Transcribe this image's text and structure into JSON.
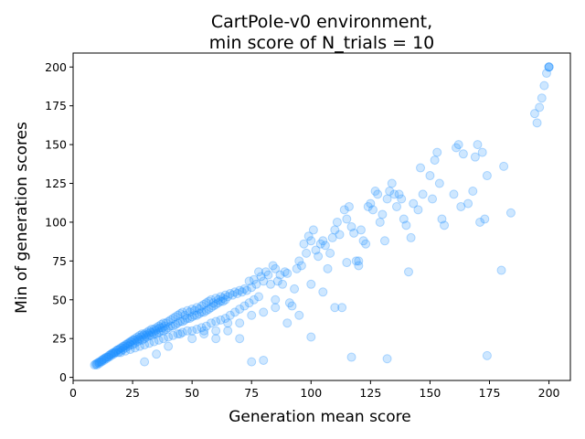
{
  "chart_data": {
    "type": "scatter",
    "title_lines": [
      "CartPole-v0 environment,",
      "min score of N_trials = 10"
    ],
    "xlabel": "Generation mean score",
    "ylabel": "Min of generation scores",
    "xlim": [
      0,
      209
    ],
    "ylim": [
      -2,
      209
    ],
    "xticks": [
      0,
      25,
      50,
      75,
      100,
      125,
      150,
      175,
      200
    ],
    "yticks": [
      0,
      25,
      50,
      75,
      100,
      125,
      150,
      175,
      200
    ],
    "grid": false,
    "legend": "none",
    "marker_color": "#1E90FF",
    "marker_alpha": 0.22,
    "series": [
      {
        "points": [
          [
            9,
            8
          ],
          [
            9.5,
            8.5
          ],
          [
            10,
            9
          ],
          [
            10,
            8
          ],
          [
            10.5,
            9.5
          ],
          [
            11,
            10
          ],
          [
            11,
            9
          ],
          [
            11.5,
            10
          ],
          [
            12,
            11
          ],
          [
            12,
            10
          ],
          [
            12.5,
            11.5
          ],
          [
            13,
            12
          ],
          [
            13,
            11
          ],
          [
            13.5,
            12.5
          ],
          [
            14,
            13
          ],
          [
            14,
            12
          ],
          [
            14.5,
            13
          ],
          [
            15,
            14
          ],
          [
            15,
            13
          ],
          [
            15.5,
            14.5
          ],
          [
            16,
            15
          ],
          [
            16,
            14
          ],
          [
            16.5,
            15.5
          ],
          [
            17,
            16
          ],
          [
            17,
            15
          ],
          [
            17.5,
            16
          ],
          [
            18,
            17
          ],
          [
            18,
            16
          ],
          [
            18.5,
            17.5
          ],
          [
            19,
            18
          ],
          [
            19,
            16
          ],
          [
            19.5,
            18
          ],
          [
            20,
            19
          ],
          [
            20,
            17
          ],
          [
            20.5,
            19
          ],
          [
            21,
            20
          ],
          [
            21,
            18
          ],
          [
            21.5,
            20
          ],
          [
            22,
            21
          ],
          [
            22,
            19
          ],
          [
            22.5,
            21
          ],
          [
            23,
            22
          ],
          [
            23,
            20
          ],
          [
            23.5,
            22
          ],
          [
            24,
            23
          ],
          [
            24,
            21
          ],
          [
            24.5,
            23
          ],
          [
            25,
            24
          ],
          [
            25,
            21
          ],
          [
            25.5,
            24
          ],
          [
            26,
            25
          ],
          [
            26,
            22
          ],
          [
            26.5,
            24
          ],
          [
            27,
            26
          ],
          [
            27,
            23
          ],
          [
            27.5,
            25
          ],
          [
            28,
            27
          ],
          [
            28,
            24
          ],
          [
            28.5,
            26
          ],
          [
            29,
            28
          ],
          [
            29,
            24
          ],
          [
            29.5,
            27
          ],
          [
            30,
            28
          ],
          [
            30,
            25
          ],
          [
            30.5,
            27
          ],
          [
            31,
            29
          ],
          [
            31,
            26
          ],
          [
            31.5,
            28
          ],
          [
            32,
            30
          ],
          [
            32,
            27
          ],
          [
            32.5,
            29
          ],
          [
            33,
            31
          ],
          [
            33,
            27
          ],
          [
            33.5,
            29
          ],
          [
            34,
            31
          ],
          [
            34,
            28
          ],
          [
            34.5,
            30
          ],
          [
            35,
            32
          ],
          [
            35,
            28
          ],
          [
            35.5,
            31
          ],
          [
            36,
            33
          ],
          [
            36,
            29
          ],
          [
            36.5,
            32
          ],
          [
            37,
            34
          ],
          [
            37,
            30
          ],
          [
            37.5,
            32
          ],
          [
            38,
            35
          ],
          [
            38,
            30
          ],
          [
            38.5,
            33
          ],
          [
            39,
            35
          ],
          [
            39,
            31
          ],
          [
            40,
            36
          ],
          [
            40,
            32
          ],
          [
            41,
            37
          ],
          [
            41,
            33
          ],
          [
            42,
            38
          ],
          [
            42,
            33
          ],
          [
            43,
            39
          ],
          [
            43,
            34
          ],
          [
            44,
            40
          ],
          [
            44,
            35
          ],
          [
            45,
            41
          ],
          [
            45,
            36
          ],
          [
            46,
            42
          ],
          [
            46,
            36
          ],
          [
            47,
            40
          ],
          [
            47,
            37
          ],
          [
            48,
            43
          ],
          [
            48,
            38
          ],
          [
            49,
            42
          ],
          [
            49,
            38
          ],
          [
            50,
            44
          ],
          [
            50,
            39
          ],
          [
            51,
            43
          ],
          [
            51,
            40
          ],
          [
            52,
            45
          ],
          [
            52,
            40
          ],
          [
            53,
            44
          ],
          [
            53,
            41
          ],
          [
            54,
            46
          ],
          [
            54,
            42
          ],
          [
            55,
            47
          ],
          [
            55,
            42
          ],
          [
            56,
            48
          ],
          [
            56,
            43
          ],
          [
            57,
            49
          ],
          [
            57,
            44
          ],
          [
            58,
            50
          ],
          [
            58,
            45
          ],
          [
            59,
            48
          ],
          [
            59,
            46
          ],
          [
            60,
            51
          ],
          [
            60,
            47
          ],
          [
            61,
            50
          ],
          [
            61,
            48
          ],
          [
            62,
            52
          ],
          [
            62,
            49
          ],
          [
            63,
            51
          ],
          [
            63,
            49
          ],
          [
            64,
            53
          ],
          [
            64,
            50
          ],
          [
            65,
            52
          ],
          [
            66,
            54
          ],
          [
            67,
            53
          ],
          [
            68,
            55
          ],
          [
            69,
            54
          ],
          [
            70,
            56
          ],
          [
            71,
            55
          ],
          [
            72,
            57
          ],
          [
            73,
            56
          ],
          [
            74,
            62
          ],
          [
            75,
            58
          ],
          [
            76,
            63
          ],
          [
            77,
            60
          ],
          [
            78,
            68
          ],
          [
            79,
            65
          ],
          [
            80,
            62
          ],
          [
            81,
            68
          ],
          [
            82,
            66
          ],
          [
            83,
            60
          ],
          [
            84,
            72
          ],
          [
            85,
            70
          ],
          [
            86,
            62
          ],
          [
            87,
            66
          ],
          [
            88,
            60
          ],
          [
            89,
            68
          ],
          [
            90,
            67
          ],
          [
            91,
            48
          ],
          [
            92,
            46
          ],
          [
            93,
            57
          ],
          [
            94,
            70
          ],
          [
            95,
            75
          ],
          [
            96,
            72
          ],
          [
            97,
            86
          ],
          [
            98,
            80
          ],
          [
            99,
            91
          ],
          [
            100,
            88
          ],
          [
            101,
            95
          ],
          [
            102,
            82
          ],
          [
            103,
            78
          ],
          [
            104,
            86
          ],
          [
            105,
            88
          ],
          [
            106,
            85
          ],
          [
            107,
            70
          ],
          [
            108,
            80
          ],
          [
            109,
            90
          ],
          [
            110,
            95
          ],
          [
            111,
            100
          ],
          [
            112,
            92
          ],
          [
            113,
            45
          ],
          [
            114,
            108
          ],
          [
            115,
            102
          ],
          [
            116,
            110
          ],
          [
            117,
            97
          ],
          [
            118,
            93
          ],
          [
            119,
            75
          ],
          [
            120,
            72
          ],
          [
            121,
            95
          ],
          [
            122,
            88
          ],
          [
            123,
            86
          ],
          [
            124,
            110
          ],
          [
            125,
            112
          ],
          [
            126,
            108
          ],
          [
            127,
            120
          ],
          [
            128,
            118
          ],
          [
            129,
            100
          ],
          [
            130,
            105
          ],
          [
            131,
            88
          ],
          [
            132,
            115
          ],
          [
            133,
            120
          ],
          [
            134,
            125
          ],
          [
            135,
            118
          ],
          [
            136,
            110
          ],
          [
            137,
            118
          ],
          [
            138,
            115
          ],
          [
            139,
            102
          ],
          [
            140,
            98
          ],
          [
            141,
            68
          ],
          [
            142,
            90
          ],
          [
            143,
            112
          ],
          [
            145,
            108
          ],
          [
            146,
            135
          ],
          [
            147,
            118
          ],
          [
            150,
            130
          ],
          [
            151,
            115
          ],
          [
            152,
            140
          ],
          [
            153,
            145
          ],
          [
            154,
            125
          ],
          [
            155,
            102
          ],
          [
            156,
            98
          ],
          [
            160,
            118
          ],
          [
            161,
            148
          ],
          [
            162,
            150
          ],
          [
            163,
            110
          ],
          [
            164,
            144
          ],
          [
            166,
            112
          ],
          [
            168,
            120
          ],
          [
            169,
            142
          ],
          [
            170,
            150
          ],
          [
            171,
            100
          ],
          [
            172,
            145
          ],
          [
            173,
            102
          ],
          [
            174,
            130
          ],
          [
            180,
            69
          ],
          [
            181,
            136
          ],
          [
            184,
            106
          ],
          [
            194,
            170
          ],
          [
            195,
            164
          ],
          [
            196,
            174
          ],
          [
            197,
            180
          ],
          [
            198,
            188
          ],
          [
            199,
            196
          ],
          [
            200,
            200
          ],
          [
            200,
            200
          ],
          [
            200,
            200
          ],
          [
            20,
            16
          ],
          [
            22,
            17
          ],
          [
            24,
            18
          ],
          [
            26,
            19
          ],
          [
            28,
            20
          ],
          [
            30,
            21
          ],
          [
            32,
            22
          ],
          [
            34,
            23
          ],
          [
            36,
            24
          ],
          [
            38,
            25
          ],
          [
            40,
            26
          ],
          [
            42,
            27
          ],
          [
            44,
            28
          ],
          [
            46,
            29
          ],
          [
            48,
            30
          ],
          [
            50,
            30
          ],
          [
            52,
            31
          ],
          [
            54,
            32
          ],
          [
            56,
            33
          ],
          [
            58,
            35
          ],
          [
            60,
            36
          ],
          [
            62,
            37
          ],
          [
            64,
            38
          ],
          [
            66,
            40
          ],
          [
            68,
            42
          ],
          [
            70,
            44
          ],
          [
            72,
            46
          ],
          [
            74,
            48
          ],
          [
            76,
            50
          ],
          [
            78,
            52
          ],
          [
            45,
            28
          ],
          [
            50,
            25
          ],
          [
            55,
            30
          ],
          [
            60,
            30
          ],
          [
            35,
            15
          ],
          [
            40,
            20
          ],
          [
            30,
            10
          ],
          [
            75,
            10
          ],
          [
            80,
            11
          ],
          [
            100,
            26
          ],
          [
            117,
            13
          ],
          [
            132,
            12
          ],
          [
            174,
            14
          ],
          [
            70,
            25
          ],
          [
            65,
            30
          ],
          [
            85,
            45
          ],
          [
            90,
            35
          ],
          [
            95,
            40
          ],
          [
            100,
            60
          ],
          [
            105,
            55
          ],
          [
            110,
            45
          ],
          [
            115,
            74
          ],
          [
            120,
            75
          ],
          [
            85,
            50
          ],
          [
            80,
            42
          ],
          [
            75,
            40
          ],
          [
            70,
            35
          ],
          [
            65,
            35
          ],
          [
            60,
            25
          ],
          [
            55,
            28
          ]
        ]
      }
    ]
  }
}
